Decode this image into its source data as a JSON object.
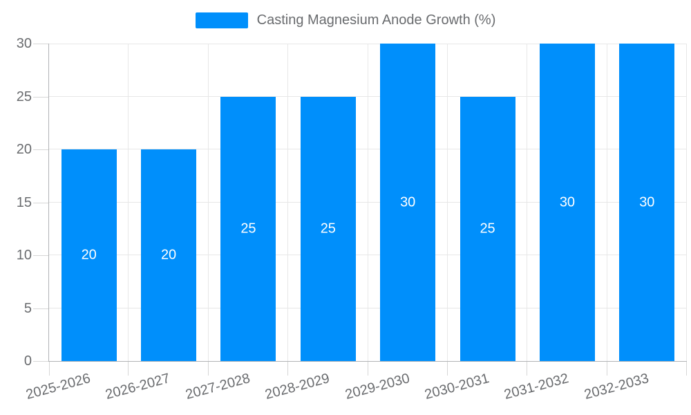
{
  "legend": {
    "items": [
      {
        "label": "Casting Magnesium Anode Growth (%)",
        "color": "#008FFB"
      }
    ]
  },
  "chart_data": {
    "type": "bar",
    "title": "Casting Magnesium Anode Growth (%)",
    "categories": [
      "2025-2026",
      "2026-2027",
      "2027-2028",
      "2028-2029",
      "2029-2030",
      "2030-2031",
      "2031-2032",
      "2032-2033"
    ],
    "series": [
      {
        "name": "Casting Magnesium Anode Growth (%)",
        "values": [
          20,
          20,
          25,
          25,
          30,
          25,
          30,
          30
        ]
      }
    ],
    "value_labels": [
      20,
      20,
      25,
      25,
      30,
      25,
      30,
      30
    ],
    "xlabel": "",
    "ylabel": "",
    "ylim": [
      0,
      30
    ],
    "yticks": [
      0,
      5,
      10,
      15,
      20,
      25,
      30
    ],
    "grid": "on",
    "legend_position": "top",
    "x_label_rotation_deg": -15,
    "value_label_position": "inside-center",
    "colors": {
      "bar": "#008FFB",
      "axis_label": "#696b6e",
      "legend_label": "#696b6e",
      "grid": "#e7e7e7",
      "axis_line": "#b1b3b5",
      "tick": "#d6d6d6",
      "value_label": "#ffffff",
      "background": "#ffffff"
    }
  }
}
